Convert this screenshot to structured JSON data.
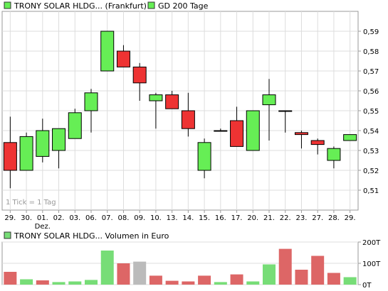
{
  "legend": {
    "price_series": "TRONY SOLAR HLDG... (Frankfurt)",
    "ma_series": "GD 200 Tage",
    "volume_series": "TRONY SOLAR HLDG... Volumen in Euro"
  },
  "colors": {
    "up": "#66ee55",
    "down": "#ee3333",
    "volume_up": "#77dd77",
    "volume_down": "#dd6666",
    "volume_neutral": "#bbbbbb",
    "grid": "#dddddd",
    "axis": "#999999"
  },
  "chart_data": [
    {
      "type": "candlestick",
      "title": "",
      "categories": [
        "29.",
        "30.",
        "01.",
        "02.",
        "03.",
        "06.",
        "07.",
        "08.",
        "09.",
        "10.",
        "13.",
        "14.",
        "15.",
        "16.",
        "17.",
        "20.",
        "21.",
        "22.",
        "23.",
        "27.",
        "28.",
        "29."
      ],
      "month_marker": {
        "index": 2,
        "label": "Dez."
      },
      "series": [
        {
          "name": "TRONY SOLAR HLDG... (Frankfurt)",
          "open": [
            0.534,
            0.52,
            0.527,
            0.53,
            0.536,
            0.55,
            0.57,
            0.58,
            0.572,
            0.555,
            0.558,
            0.55,
            0.52,
            0.54,
            0.545,
            0.53,
            0.553,
            0.55,
            0.539,
            0.535,
            0.525,
            0.535
          ],
          "high": [
            0.547,
            0.539,
            0.546,
            0.541,
            0.551,
            0.561,
            0.59,
            0.583,
            0.574,
            0.559,
            0.56,
            0.559,
            0.536,
            0.541,
            0.552,
            0.55,
            0.566,
            0.55,
            0.54,
            0.536,
            0.532,
            0.538
          ],
          "low": [
            0.511,
            0.52,
            0.524,
            0.521,
            0.536,
            0.539,
            0.57,
            0.572,
            0.555,
            0.541,
            0.551,
            0.537,
            0.516,
            0.54,
            0.532,
            0.53,
            0.535,
            0.539,
            0.531,
            0.528,
            0.521,
            0.535
          ],
          "close": [
            0.52,
            0.537,
            0.54,
            0.541,
            0.549,
            0.559,
            0.59,
            0.572,
            0.564,
            0.558,
            0.551,
            0.541,
            0.534,
            0.54,
            0.532,
            0.55,
            0.558,
            0.55,
            0.538,
            0.533,
            0.531,
            0.538
          ]
        }
      ],
      "ylim": [
        0.5,
        0.6
      ],
      "yticks": [
        "0,51",
        "0,52",
        "0,53",
        "0,54",
        "0,55",
        "0,56",
        "0,57",
        "0,58",
        "0,59"
      ],
      "ytick_values": [
        0.51,
        0.52,
        0.53,
        0.54,
        0.55,
        0.56,
        0.57,
        0.58,
        0.59
      ],
      "note": "1 Tick = 1 Tag",
      "grid": true,
      "legend_position": "top-left"
    },
    {
      "type": "bar",
      "title": "",
      "categories": [
        "29.",
        "30.",
        "01.",
        "02.",
        "03.",
        "06.",
        "07.",
        "08.",
        "09.",
        "10.",
        "13.",
        "14.",
        "15.",
        "16.",
        "17.",
        "20.",
        "21.",
        "22.",
        "23.",
        "27.",
        "28.",
        "29."
      ],
      "series": [
        {
          "name": "TRONY SOLAR HLDG... Volumen in Euro",
          "values": [
            60,
            25,
            20,
            12,
            15,
            22,
            160,
            100,
            108,
            42,
            18,
            15,
            42,
            12,
            48,
            15,
            95,
            168,
            70,
            135,
            55,
            35
          ],
          "direction": [
            "down",
            "up",
            "down",
            "up",
            "up",
            "up",
            "up",
            "down",
            "neutral",
            "down",
            "down",
            "down",
            "down",
            "up",
            "down",
            "up",
            "up",
            "down",
            "down",
            "down",
            "down",
            "up"
          ]
        }
      ],
      "ylim": [
        0,
        200
      ],
      "yticks": [
        "200T",
        "100T",
        "0T"
      ],
      "ytick_values": [
        200,
        100,
        0
      ],
      "grid": true,
      "legend_position": "top-left"
    }
  ]
}
